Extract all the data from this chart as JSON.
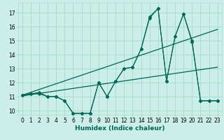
{
  "xlabel": "Humidex (Indice chaleur)",
  "bg_color": "#cceee8",
  "grid_color": "#aaddcc",
  "line_color": "#006655",
  "xlim": [
    -0.5,
    23.5
  ],
  "ylim": [
    9.7,
    17.7
  ],
  "yticks": [
    10,
    11,
    12,
    13,
    14,
    15,
    16,
    17
  ],
  "xticks": [
    0,
    1,
    2,
    3,
    4,
    5,
    6,
    7,
    8,
    9,
    10,
    11,
    12,
    13,
    14,
    15,
    16,
    17,
    18,
    19,
    20,
    21,
    22,
    23
  ],
  "series1_x": [
    0,
    1,
    2,
    3,
    4,
    5,
    6,
    7,
    8,
    9,
    10,
    11,
    12,
    13,
    14,
    15,
    16,
    17,
    18,
    19,
    20,
    21,
    22,
    23
  ],
  "series1_y": [
    11.1,
    11.2,
    11.3,
    11.0,
    11.0,
    10.7,
    9.8,
    9.8,
    9.8,
    12.0,
    11.0,
    12.1,
    13.0,
    13.1,
    14.4,
    16.7,
    17.3,
    12.1,
    15.3,
    16.9,
    15.0,
    10.7,
    10.7,
    10.7
  ],
  "series2_x": [
    0,
    1,
    2,
    3,
    4,
    5,
    6,
    7,
    8,
    9,
    10,
    11,
    12,
    13,
    14,
    15,
    16,
    17,
    18,
    19,
    20,
    21,
    22,
    23
  ],
  "series2_y": [
    11.1,
    11.2,
    11.2,
    11.0,
    11.0,
    10.7,
    9.8,
    9.8,
    9.8,
    12.0,
    11.0,
    12.1,
    13.0,
    13.1,
    14.4,
    16.6,
    17.3,
    12.1,
    15.3,
    16.9,
    14.9,
    10.7,
    10.7,
    10.7
  ],
  "trend1_x": [
    0,
    23
  ],
  "trend1_y": [
    11.05,
    13.1
  ],
  "trend2_x": [
    0,
    23
  ],
  "trend2_y": [
    11.1,
    15.8
  ],
  "marker_size": 2.5,
  "tick_fontsize": 5.5,
  "xlabel_fontsize": 6.5
}
